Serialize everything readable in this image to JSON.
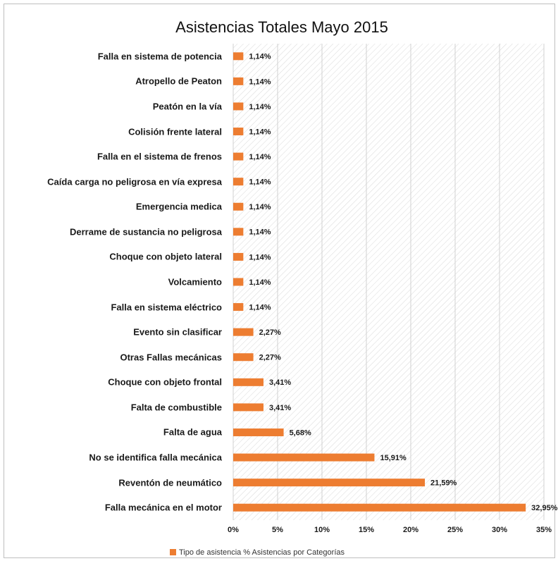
{
  "chart_data": {
    "type": "bar",
    "orientation": "horizontal",
    "title": "Asistencias Totales Mayo 2015",
    "categories": [
      "Falla en sistema de potencia",
      "Atropello de Peaton",
      "Peatón en la vía",
      "Colisión frente lateral",
      "Falla en el sistema de frenos",
      "Caída carga no peligrosa en vía expresa",
      "Emergencia medica",
      "Derrame de sustancia no peligrosa",
      "Choque con objeto lateral",
      "Volcamiento",
      "Falla en sistema eléctrico",
      "Evento sin clasificar",
      "Otras Fallas mecánicas",
      "Choque con objeto frontal",
      "Falta de combustible",
      "Falta de agua",
      "No se  identifica falla mecánica",
      "Reventón de neumático",
      "Falla mecánica en el motor"
    ],
    "series": [
      {
        "name": "Tipo de asistencia % Asistencias por Categorías",
        "color": "#ed7d31",
        "values": [
          1.14,
          1.14,
          1.14,
          1.14,
          1.14,
          1.14,
          1.14,
          1.14,
          1.14,
          1.14,
          1.14,
          2.27,
          2.27,
          3.41,
          3.41,
          5.68,
          15.91,
          21.59,
          32.95
        ],
        "value_labels": [
          "1,14%",
          "1,14%",
          "1,14%",
          "1,14%",
          "1,14%",
          "1,14%",
          "1,14%",
          "1,14%",
          "1,14%",
          "1,14%",
          "1,14%",
          "2,27%",
          "2,27%",
          "3,41%",
          "3,41%",
          "5,68%",
          "15,91%",
          "21,59%",
          "32,95%"
        ]
      }
    ],
    "xlim": [
      0,
      35
    ],
    "xticks": [
      {
        "value": 0,
        "label": "0%"
      },
      {
        "value": 5,
        "label": "5%"
      },
      {
        "value": 10,
        "label": "10%"
      },
      {
        "value": 15,
        "label": "15%"
      },
      {
        "value": 20,
        "label": "20%"
      },
      {
        "value": 25,
        "label": "25%"
      },
      {
        "value": 30,
        "label": "30%"
      },
      {
        "value": 35,
        "label": "35%"
      }
    ],
    "grid": true,
    "legend": "bottom"
  }
}
